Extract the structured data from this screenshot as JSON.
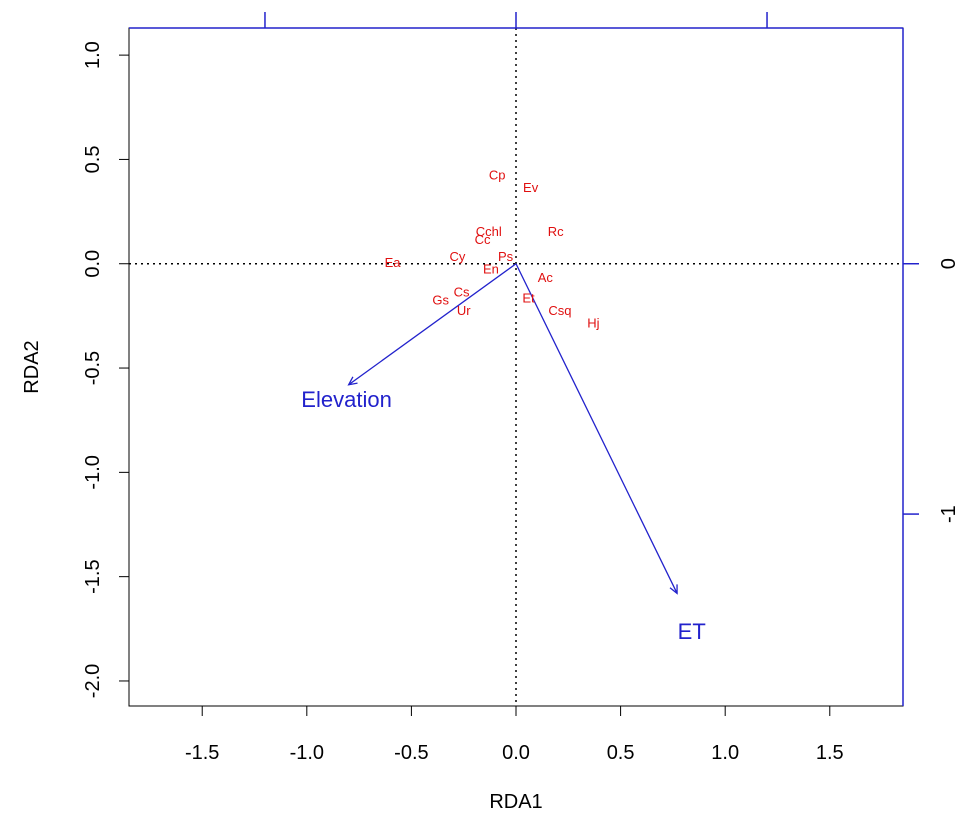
{
  "chart_data": {
    "type": "scatter",
    "xlabel": "RDA1",
    "ylabel": "RDA2",
    "xlim": [
      -1.85,
      1.85
    ],
    "ylim": [
      -2.12,
      1.13
    ],
    "x_ticks": [
      -1.5,
      -1.0,
      -0.5,
      0.0,
      0.5,
      1.0,
      1.5
    ],
    "x_tick_labels": [
      "-1.5",
      "-1.0",
      "-0.5",
      "0.0",
      "0.5",
      "1.0",
      "1.5"
    ],
    "y_ticks": [
      -2.0,
      -1.5,
      -1.0,
      -0.5,
      0.0,
      0.5,
      1.0
    ],
    "y_tick_labels": [
      "-2.0",
      "-1.5",
      "-1.0",
      "-0.5",
      "0.0",
      "0.5",
      "1.0"
    ],
    "secondary_axis": {
      "color": "#2222cc",
      "scale": 1.2,
      "x_ticks": [
        -1,
        0,
        1
      ],
      "y_ticks": [
        0,
        -1
      ],
      "y_tick_labels": [
        "0",
        "-1"
      ]
    },
    "reference_lines": {
      "x": 0,
      "y": 0,
      "style": "dotted"
    },
    "species": [
      {
        "label": "Cp",
        "x": -0.09,
        "y": 0.42
      },
      {
        "label": "Ev",
        "x": 0.07,
        "y": 0.36
      },
      {
        "label": "Cchl",
        "x": -0.13,
        "y": 0.15
      },
      {
        "label": "Cc",
        "x": -0.16,
        "y": 0.11
      },
      {
        "label": "Rc",
        "x": 0.19,
        "y": 0.15
      },
      {
        "label": "Ps",
        "x": -0.05,
        "y": 0.03
      },
      {
        "label": "Ea",
        "x": -0.59,
        "y": 0.0
      },
      {
        "label": "Cy",
        "x": -0.28,
        "y": 0.03
      },
      {
        "label": "En",
        "x": -0.12,
        "y": -0.03
      },
      {
        "label": "Ac",
        "x": 0.14,
        "y": -0.07
      },
      {
        "label": "Cs",
        "x": -0.26,
        "y": -0.14
      },
      {
        "label": "Gs",
        "x": -0.36,
        "y": -0.18
      },
      {
        "label": "Ur",
        "x": -0.25,
        "y": -0.23
      },
      {
        "label": "Et",
        "x": 0.06,
        "y": -0.17
      },
      {
        "label": "Csq",
        "x": 0.21,
        "y": -0.23
      },
      {
        "label": "Hj",
        "x": 0.37,
        "y": -0.29
      }
    ],
    "vectors": [
      {
        "label": "Elevation",
        "x": -0.8,
        "y": -0.58,
        "label_x": -0.81,
        "label_y": -0.66
      },
      {
        "label": "ET",
        "x": 0.77,
        "y": -1.58,
        "label_x": 0.84,
        "label_y": -1.77
      }
    ],
    "colors": {
      "species": "#e01010",
      "vectors": "#2222cc",
      "axes": "#000000"
    }
  }
}
